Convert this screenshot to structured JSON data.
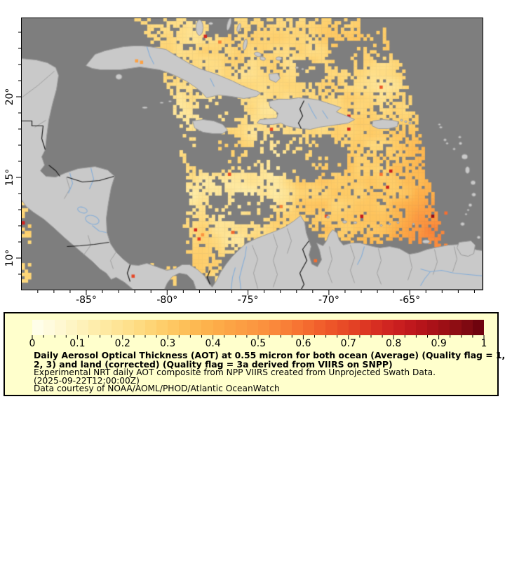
{
  "map": {
    "colors": {
      "ocean_no_data": "#7e7e7e",
      "land": "#c9c9c9",
      "land_outline": "#9b9b9b",
      "country_border": "#1f1f1f",
      "river": "#86aed8",
      "frame": "#000000",
      "page_background": "#ffffff"
    },
    "x_axis": {
      "tick_labels": [
        "-85°",
        "-80°",
        "-75°",
        "-70°",
        "-65°"
      ],
      "tick_lons": [
        -85,
        -80,
        -75,
        -70,
        -65
      ],
      "minor_lon_start": -88,
      "minor_lon_end": -61
    },
    "y_axis": {
      "tick_labels": [
        "20°",
        "15°",
        "10°"
      ],
      "tick_lats": [
        20,
        15,
        10
      ],
      "minor_lat_start": 9,
      "minor_lat_end": 24
    }
  },
  "legend": {
    "background": "#ffffcc",
    "border_color": "#000000",
    "colorbar": {
      "min": 0,
      "max": 1,
      "segments": 40,
      "minor_tick_step": 0.025,
      "tick_labels": [
        "0",
        "0.1",
        "0.2",
        "0.3",
        "0.4",
        "0.5",
        "0.6",
        "0.7",
        "0.8",
        "0.9",
        "1"
      ],
      "tick_values": [
        0,
        0.1,
        0.2,
        0.3,
        0.4,
        0.5,
        0.6,
        0.7,
        0.8,
        0.9,
        1
      ]
    },
    "lines": [
      {
        "text": "Daily Aerosol Optical Thickness (AOT) at 0.55 micron for both ocean (Average) (Quality flag = 1,",
        "bold": true
      },
      {
        "text": "2, 3) and land (corrected) (Quality flag = 3a derived from VIIRS on SNPP)",
        "bold": true
      },
      {
        "text": "Experimental NRT daily AOT composite from NPP VIIRS created from Unprojected Swath Data.",
        "bold": false
      },
      {
        "text": "(2025-09-22T12:00:00Z)",
        "bold": false
      },
      {
        "text": "Data courtesy of NOAA/AOML/PHOD/Atlantic OceanWatch",
        "bold": false
      }
    ]
  },
  "chart_data": {
    "type": "heatmap",
    "title": "Daily Aerosol Optical Thickness (AOT) at 0.55 micron for both ocean (Average) (Quality flag = 1, 2, 3) and land (corrected) (Quality flag = 3a derived from VIIRS on SNPP)",
    "subtitle": "Experimental NRT daily AOT composite from NPP VIIRS created from Unprojected Swath Data.",
    "timestamp": "2025-09-22T12:00:00Z",
    "credit": "Data courtesy of NOAA/AOML/PHOD/Atlantic OceanWatch",
    "value_range": [
      0,
      1
    ],
    "lon_range": [
      -89.0,
      -60.5
    ],
    "lat_range": [
      8.1,
      24.9
    ],
    "x_tick_lons": [
      -85,
      -80,
      -75,
      -70,
      -65
    ],
    "y_tick_lats": [
      10,
      15,
      20
    ],
    "colormap_stops": [
      [
        0.0,
        "#ffffee"
      ],
      [
        0.05,
        "#fffad8"
      ],
      [
        0.1,
        "#fef3bf"
      ],
      [
        0.15,
        "#feeba6"
      ],
      [
        0.2,
        "#fee291"
      ],
      [
        0.25,
        "#fed87b"
      ],
      [
        0.3,
        "#fecb66"
      ],
      [
        0.35,
        "#fdbc55"
      ],
      [
        0.4,
        "#fdae49"
      ],
      [
        0.45,
        "#fca144"
      ],
      [
        0.5,
        "#fb9540"
      ],
      [
        0.55,
        "#f98439"
      ],
      [
        0.6,
        "#f66f31"
      ],
      [
        0.65,
        "#ef5a2a"
      ],
      [
        0.7,
        "#e64626"
      ],
      [
        0.75,
        "#da3222"
      ],
      [
        0.8,
        "#cd2120"
      ],
      [
        0.85,
        "#bc151c"
      ],
      [
        0.9,
        "#a41016"
      ],
      [
        0.95,
        "#870c12"
      ],
      [
        1.0,
        "#67000d"
      ]
    ],
    "regions": [
      {
        "area": "central and eastern Caribbean satellite swath",
        "approx_aot": 0.15
      },
      {
        "area": "southeast Caribbean near Venezuela coast",
        "approx_aot": 0.4
      },
      {
        "area": "isolated hot spots (SW Caribbean, Bahamas)",
        "approx_aot": 0.75
      },
      {
        "area": "western Caribbean, Gulf of Mexico side and far east",
        "approx_aot": null,
        "note": "no data (gray)"
      }
    ]
  }
}
